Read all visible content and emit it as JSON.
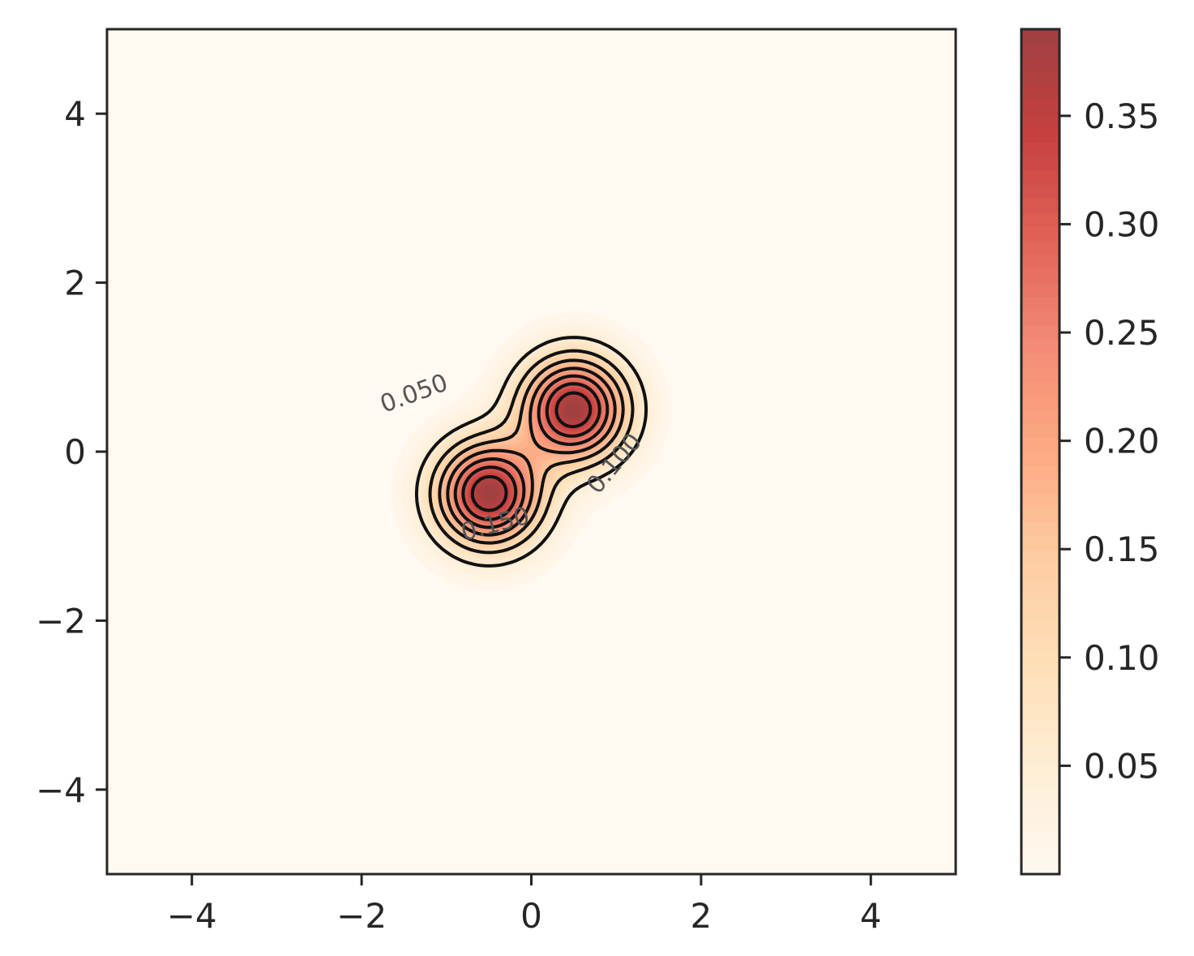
{
  "chart_data": {
    "type": "heatmap",
    "subtype": "filled-contour-with-line-contours",
    "title": "",
    "xlabel": "",
    "ylabel": "",
    "xlim": [
      -5,
      5
    ],
    "ylim": [
      -5,
      5
    ],
    "grid": false,
    "x_ticks": [
      -4,
      -2,
      0,
      2,
      4
    ],
    "y_ticks": [
      -4,
      -2,
      0,
      2,
      4
    ],
    "x_tick_labels": [
      "−4",
      "−2",
      "0",
      "2",
      "4"
    ],
    "y_tick_labels": [
      "−4",
      "−2",
      "0",
      "2",
      "4"
    ],
    "colormap": "OrRd",
    "colormap_colors": [
      "#fff7ec",
      "#fee8c8",
      "#fdd49e",
      "#fdbb84",
      "#fc8d59",
      "#ef6548",
      "#d7301f",
      "#b30000",
      "#7f0000"
    ],
    "fill_alpha": 0.75,
    "peaks": [
      {
        "x": -0.5,
        "y": -0.5,
        "value": 0.39
      },
      {
        "x": 0.5,
        "y": 0.5,
        "value": 0.39
      }
    ],
    "contour_levels": [
      0.05,
      0.1,
      0.15,
      0.2,
      0.25,
      0.3,
      0.35
    ],
    "contour_labels": [
      {
        "text": "0.050",
        "x": -1.35,
        "y": 0.6
      },
      {
        "text": "0.100",
        "x": 1.05,
        "y": -0.2
      },
      {
        "text": "0.150",
        "x": -0.4,
        "y": -0.95
      }
    ],
    "colorbar": {
      "min": 0.0,
      "max": 0.39,
      "ticks": [
        0.05,
        0.1,
        0.15,
        0.2,
        0.25,
        0.3,
        0.35
      ],
      "tick_labels": [
        "0.05",
        "0.10",
        "0.15",
        "0.20",
        "0.25",
        "0.30",
        "0.35"
      ]
    }
  }
}
